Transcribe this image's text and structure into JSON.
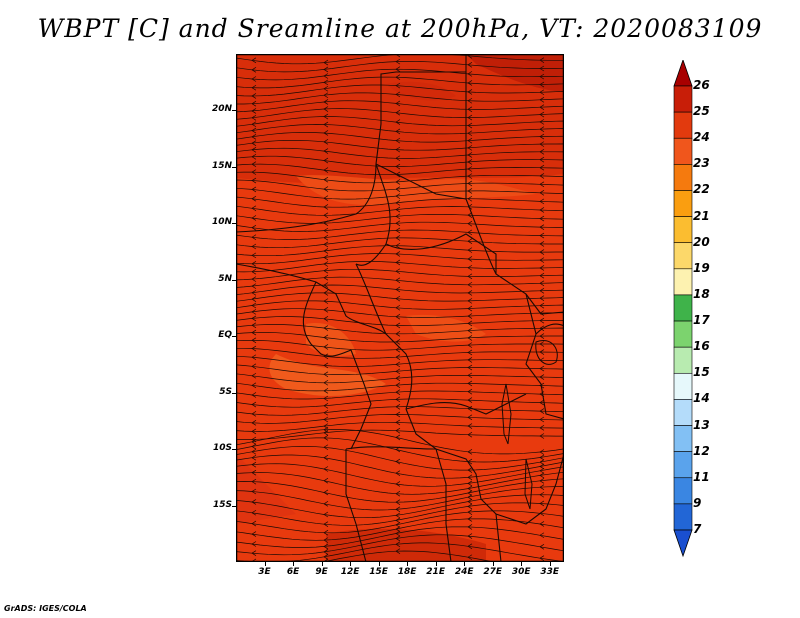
{
  "title": "WBPT [C] and Sreamline at 200hPa, VT: 2020083109",
  "credit": "GrADS: IGES/COLA",
  "map": {
    "lat_labels": [
      "20N",
      "15N",
      "10N",
      "5N",
      "EQ",
      "5S",
      "10S",
      "15S"
    ],
    "lat_values": [
      20,
      15,
      10,
      5,
      0,
      -5,
      -10,
      -15
    ],
    "lon_labels": [
      "3E",
      "6E",
      "9E",
      "12E",
      "15E",
      "18E",
      "21E",
      "24E",
      "27E",
      "30E",
      "33E"
    ],
    "lon_values": [
      3,
      6,
      9,
      12,
      15,
      18,
      21,
      24,
      27,
      30,
      33
    ],
    "lon_range": [
      0,
      34.5
    ],
    "lat_range": [
      -20,
      25
    ],
    "background_color": "#e83a0e"
  },
  "colorbar": {
    "levels": [
      "26",
      "25",
      "24",
      "23",
      "22",
      "21",
      "20",
      "19",
      "18",
      "17",
      "16",
      "15",
      "14",
      "13",
      "12",
      "11",
      "9",
      "7"
    ],
    "colors": [
      "#a80000",
      "#c81e08",
      "#e23a0e",
      "#f0561c",
      "#f57a0e",
      "#fa9e10",
      "#fbbd30",
      "#fcd86a",
      "#fdf2b0",
      "#3fb34a",
      "#7cd36e",
      "#b8ebb0",
      "#e6f8fb",
      "#b4dcfa",
      "#82c0f4",
      "#5aa3ec",
      "#3a86e2",
      "#2266d6",
      "#1a4fd0"
    ]
  }
}
